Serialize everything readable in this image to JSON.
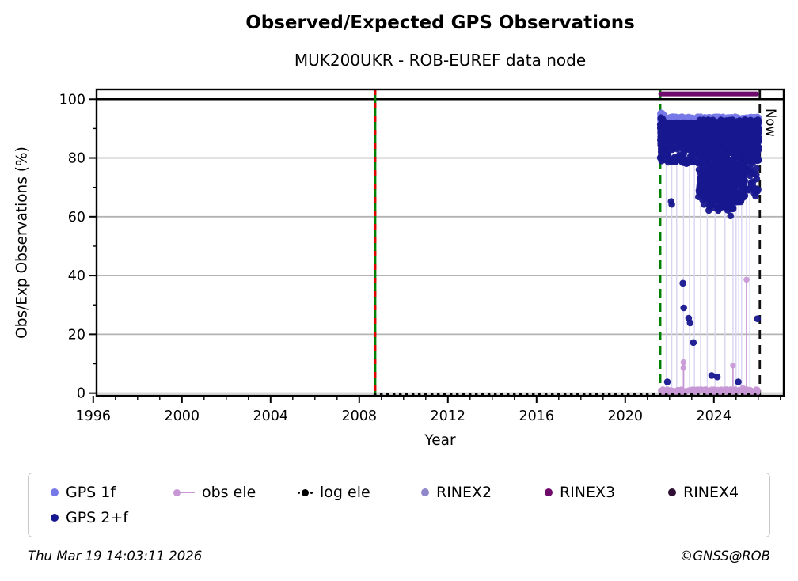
{
  "header": {
    "title": "Observed/Expected GPS Observations",
    "subtitle": "MUK200UKR - ROB-EUREF data node"
  },
  "footer": {
    "timestamp": "Thu Mar 19 14:03:11 2026",
    "copyright": "©GNSS@ROB"
  },
  "legend": {
    "items": [
      {
        "label": "GPS 1f",
        "color": "#7678e8",
        "marker": "dot"
      },
      {
        "label": "obs ele",
        "color": "#c897d5",
        "marker": "line-dot"
      },
      {
        "label": "log ele",
        "color": "#000000",
        "marker": "dotted-line-dot"
      },
      {
        "label": "RINEX2",
        "color": "#9088cb",
        "marker": "dot"
      },
      {
        "label": "RINEX3",
        "color": "#6f0c6b",
        "marker": "dot"
      },
      {
        "label": "RINEX4",
        "color": "#2e0e33",
        "marker": "dot"
      },
      {
        "label": "GPS 2+f",
        "color": "#17178f",
        "marker": "dot"
      }
    ]
  },
  "chart_data": {
    "type": "scatter",
    "title": "Observed/Expected GPS Observations",
    "subtitle": "MUK200UKR - ROB-EUREF data node",
    "xlabel": "Year",
    "ylabel": "Obs/Exp Observations (%)",
    "x_range": [
      1996.15,
      2027.15
    ],
    "y_range": [
      -0.9,
      103.3
    ],
    "x_major_ticks": [
      1996,
      2000,
      2004,
      2008,
      2012,
      2016,
      2020,
      2024
    ],
    "x_minor_tick_step": 1,
    "y_major_ticks": [
      0,
      20,
      40,
      60,
      80,
      100
    ],
    "y_minor_ticks": [
      10,
      30,
      50,
      70,
      90
    ],
    "grid": {
      "horizontal": true,
      "color": "#b3b3b3",
      "line_at_100_color": "#000000"
    },
    "legend_position": "below",
    "now_label": "Now",
    "vlines": [
      {
        "name": "log-start-line",
        "x": 2008.71,
        "style": "green-red-dashed",
        "green": "#008000",
        "red": "#e00000"
      },
      {
        "name": "data-start-line",
        "x": 2021.57,
        "style": "green-dashed",
        "color": "#008000"
      },
      {
        "name": "now-line",
        "x": 2026.07,
        "style": "black-dashed",
        "color": "#111111",
        "label": "Now"
      }
    ],
    "faint_stems": {
      "color": "#d8d4f2",
      "y_top": 88,
      "y_bottom": 0.5,
      "x": [
        2021.85,
        2022.1,
        2022.32,
        2022.63,
        2022.9,
        2023.12,
        2023.4,
        2023.7,
        2024.05,
        2024.5,
        2024.86,
        2025.0,
        2025.12,
        2025.25,
        2025.47,
        2025.62
      ]
    },
    "series": [
      {
        "name": "GPS 1f",
        "color": "#7678e8",
        "marker_r": 4.3,
        "opacity": 0.95,
        "clusters": [
          {
            "x0": 2021.58,
            "x1": 2026.03,
            "y0": 91.2,
            "y1": 94.0,
            "n": 430
          },
          {
            "x0": 2021.58,
            "x1": 2021.75,
            "y0": 86.0,
            "y1": 95.5,
            "n": 26
          },
          {
            "x0": 2021.8,
            "x1": 2022.3,
            "y0": 88.0,
            "y1": 91.0,
            "n": 14
          }
        ],
        "points": [
          [
            2021.66,
            95.2
          ],
          [
            2021.72,
            94.7
          ]
        ]
      },
      {
        "name": "GPS 2+f",
        "color": "#17178f",
        "marker_r": 4.3,
        "opacity": 0.95,
        "clusters": [
          {
            "x0": 2021.58,
            "x1": 2023.3,
            "y0": 85.5,
            "y1": 92.0,
            "n": 500
          },
          {
            "x0": 2021.58,
            "x1": 2023.3,
            "y0": 78.0,
            "y1": 87.0,
            "n": 110
          },
          {
            "x0": 2021.6,
            "x1": 2021.78,
            "y0": 80.0,
            "y1": 94.0,
            "n": 45
          },
          {
            "x0": 2023.3,
            "x1": 2025.4,
            "y0": 65.0,
            "y1": 92.5,
            "n": 650
          },
          {
            "x0": 2023.3,
            "x1": 2025.4,
            "y0": 86.0,
            "y1": 93.0,
            "n": 200
          },
          {
            "x0": 2023.5,
            "x1": 2024.9,
            "y0": 62.0,
            "y1": 75.0,
            "n": 90
          },
          {
            "x0": 2025.4,
            "x1": 2026.03,
            "y0": 79.0,
            "y1": 93.0,
            "n": 220
          },
          {
            "x0": 2025.5,
            "x1": 2026.0,
            "y0": 68.0,
            "y1": 80.0,
            "n": 28
          }
        ],
        "points": [
          [
            2022.07,
            65.2
          ],
          [
            2022.1,
            64.2
          ],
          [
            2024.75,
            60.3
          ],
          [
            2022.6,
            37.4
          ],
          [
            2022.64,
            29.0
          ],
          [
            2022.86,
            25.5
          ],
          [
            2022.93,
            23.9
          ],
          [
            2025.96,
            25.3
          ],
          [
            2023.07,
            17.2
          ],
          [
            2023.9,
            6.0
          ],
          [
            2024.15,
            5.5
          ],
          [
            2021.9,
            3.8
          ],
          [
            2025.1,
            3.8
          ],
          [
            2025.93,
            69.5
          ],
          [
            2025.88,
            67.0
          ]
        ]
      },
      {
        "name": "obs ele",
        "color": "#c897d5",
        "marker_r": 3.8,
        "opacity": 0.9,
        "clusters": [
          {
            "x0": 2021.6,
            "x1": 2025.98,
            "y0": 0.0,
            "y1": 1.3,
            "n": 150
          }
        ],
        "stem_points": [
          [
            2022.63,
            10.5
          ],
          [
            2022.63,
            8.6
          ],
          [
            2024.86,
            9.4
          ],
          [
            2025.47,
            38.6
          ],
          [
            2025.3,
            1.8
          ]
        ]
      },
      {
        "name": "log ele",
        "color": "#000000",
        "style": "dotted-line",
        "y": -0.4,
        "x0": 2008.71,
        "x1": 2026.06
      },
      {
        "name": "RINEX3",
        "color": "#6f0c6b",
        "style": "bar",
        "x0": 2021.6,
        "x1": 2025.93,
        "y": 101.8,
        "thickness_px": 6
      },
      {
        "name": "RINEX2",
        "color": "#9088cb",
        "style": "none-visible"
      },
      {
        "name": "RINEX4",
        "color": "#2e0e33",
        "style": "none-visible"
      }
    ]
  }
}
